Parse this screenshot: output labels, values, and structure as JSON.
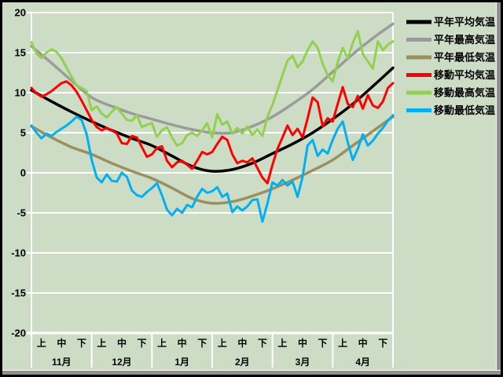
{
  "chart_data": {
    "type": "line",
    "title": "",
    "background_color": "#cdddc5",
    "grid": true,
    "grid_color": "#ffffff",
    "frame_border_color": "#000000",
    "frame_shadow_color": "#8f8f8f",
    "legend_position": "right",
    "y_axis": {
      "min": -20,
      "max": 20,
      "tick_step": 5,
      "ticks": [
        20,
        15,
        10,
        5,
        0,
        -5,
        -10,
        -15,
        -20
      ]
    },
    "x_axis": {
      "months": [
        "11月",
        "12月",
        "1月",
        "2月",
        "3月",
        "4月"
      ],
      "periods_per_month": [
        "上",
        "中",
        "下"
      ],
      "total_days": 180
    },
    "series": [
      {
        "name": "平年平均気温",
        "color": "#000000",
        "style": "smooth",
        "sample_interval_days": 10,
        "values": [
          10.3,
          8.9,
          7.6,
          6.4,
          5.3,
          4.3,
          3.4,
          2.1,
          0.8,
          0.2,
          0.4,
          1.2,
          2.4,
          3.6,
          5.0,
          6.7,
          8.6,
          10.8,
          13.1
        ]
      },
      {
        "name": "平年最高気温",
        "color": "#9b9b9b",
        "style": "smooth",
        "sample_interval_days": 10,
        "values": [
          15.8,
          13.7,
          11.5,
          9.4,
          8.3,
          7.4,
          6.7,
          6.0,
          5.4,
          5.0,
          5.0,
          5.8,
          7.0,
          8.6,
          10.4,
          12.6,
          14.8,
          16.8,
          18.6
        ]
      },
      {
        "name": "平年最低気温",
        "color": "#998f5f",
        "style": "smooth",
        "sample_interval_days": 10,
        "values": [
          5.8,
          4.4,
          3.2,
          2.3,
          1.2,
          0.2,
          -0.7,
          -1.9,
          -3.2,
          -3.8,
          -3.6,
          -2.9,
          -2.0,
          -0.9,
          0.3,
          1.6,
          3.4,
          5.2,
          7.0
        ]
      },
      {
        "name": "移動平均気温",
        "color": "#ff0000",
        "style": "jagged",
        "sample_interval_days": 2.5,
        "values": [
          10.6,
          9.9,
          9.5,
          9.8,
          10.2,
          10.7,
          11.2,
          11.4,
          10.9,
          10.1,
          9.0,
          7.8,
          6.6,
          5.7,
          5.3,
          5.6,
          5.3,
          4.9,
          3.7,
          3.6,
          4.6,
          4.4,
          3.2,
          2.0,
          2.3,
          3.1,
          3.3,
          1.5,
          0.7,
          1.3,
          1.5,
          1.0,
          0.5,
          1.5,
          2.6,
          2.3,
          2.6,
          3.6,
          4.5,
          4.1,
          2.3,
          1.2,
          1.5,
          1.3,
          1.8,
          0.6,
          -0.6,
          -1.3,
          1.0,
          3.0,
          4.4,
          5.9,
          4.7,
          5.5,
          4.4,
          6.8,
          9.4,
          8.8,
          5.8,
          6.8,
          6.4,
          8.6,
          10.7,
          8.6,
          8.2,
          9.6,
          8.0,
          9.7,
          8.4,
          8.1,
          8.9,
          10.6,
          11.2
        ]
      },
      {
        "name": "移動最高気温",
        "color": "#92d050",
        "style": "jagged",
        "sample_interval_days": 2.5,
        "values": [
          16.3,
          14.9,
          14.3,
          15.0,
          15.4,
          15.1,
          14.3,
          13.1,
          12.0,
          10.9,
          10.6,
          10.2,
          7.8,
          8.3,
          7.4,
          6.9,
          7.6,
          8.2,
          7.4,
          6.6,
          6.5,
          7.2,
          5.7,
          6.0,
          6.2,
          4.5,
          5.3,
          5.7,
          4.4,
          3.4,
          3.7,
          4.7,
          5.0,
          4.6,
          5.3,
          6.2,
          4.4,
          7.3,
          6.0,
          6.4,
          4.9,
          5.6,
          4.9,
          5.8,
          4.7,
          5.4,
          4.6,
          7.0,
          8.5,
          10.3,
          12.2,
          14.0,
          14.6,
          13.2,
          13.9,
          15.3,
          16.4,
          15.6,
          13.6,
          12.2,
          11.4,
          13.8,
          15.6,
          14.3,
          16.2,
          17.7,
          14.8,
          13.9,
          13.0,
          16.4,
          15.3,
          16.0,
          16.4
        ]
      },
      {
        "name": "移動最低気温",
        "color": "#00b0f0",
        "style": "jagged",
        "sample_interval_days": 2.5,
        "values": [
          5.9,
          5.0,
          4.3,
          4.9,
          4.6,
          5.1,
          5.5,
          5.9,
          6.4,
          7.0,
          6.6,
          4.8,
          1.6,
          -0.6,
          -1.2,
          -0.2,
          -1.0,
          -1.1,
          0.0,
          -0.5,
          -2.2,
          -2.8,
          -3.0,
          -2.4,
          -1.9,
          -1.3,
          -2.8,
          -4.6,
          -5.3,
          -4.5,
          -5.0,
          -4.0,
          -4.3,
          -3.0,
          -2.0,
          -2.5,
          -2.3,
          -1.8,
          -3.0,
          -2.6,
          -4.9,
          -4.2,
          -4.7,
          -4.2,
          -3.4,
          -3.3,
          -6.1,
          -3.8,
          -1.2,
          -1.6,
          -0.9,
          -1.6,
          -1.1,
          -3.0,
          -0.5,
          3.4,
          4.1,
          2.1,
          2.9,
          2.4,
          4.1,
          5.5,
          6.4,
          3.8,
          1.6,
          3.0,
          4.8,
          3.4,
          4.0,
          4.9,
          5.6,
          6.5,
          7.2
        ]
      }
    ]
  }
}
